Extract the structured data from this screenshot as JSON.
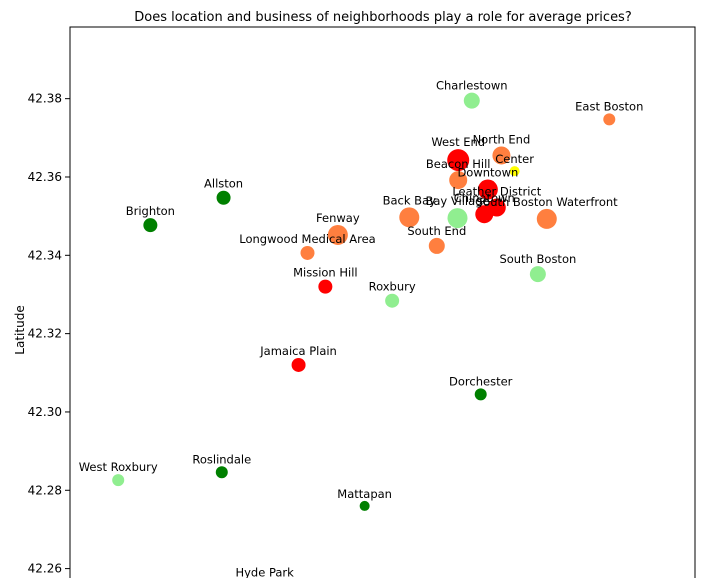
{
  "chart_data": {
    "type": "scatter",
    "title": "Does location and business of neighborhoods play a role for average prices?",
    "xlabel": "",
    "ylabel": "Latitude",
    "xlim": [
      -71.175,
      -71.0
    ],
    "ylim": [
      42.2553,
      42.3983
    ],
    "yticks": [
      "42.26",
      "42.28",
      "42.30",
      "42.32",
      "42.34",
      "42.36",
      "42.38"
    ],
    "grid": false,
    "colors": {
      "red": "#ff0000",
      "coral": "#ff7f3f",
      "lightgreen": "#90ee90",
      "darkgreen": "#008000",
      "yellow": "#ffff00"
    },
    "points": [
      {
        "label": "Charlestown",
        "x": -71.0625,
        "y": 42.3795,
        "size": 8,
        "color": "lightgreen"
      },
      {
        "label": "East Boston",
        "x": -71.024,
        "y": 42.3747,
        "size": 6,
        "color": "coral"
      },
      {
        "label": "North End",
        "x": -71.0542,
        "y": 42.3655,
        "size": 9,
        "color": "coral"
      },
      {
        "label": "West End",
        "x": -71.0663,
        "y": 42.3643,
        "size": 11,
        "color": "red"
      },
      {
        "label": "Center",
        "x": -71.0505,
        "y": 42.3615,
        "size": 5,
        "color": "yellow"
      },
      {
        "label": "Beacon Hill",
        "x": -71.0663,
        "y": 42.3592,
        "size": 9,
        "color": "coral"
      },
      {
        "label": "Downtown",
        "x": -71.058,
        "y": 42.3568,
        "size": 10,
        "color": "red"
      },
      {
        "label": "Allston",
        "x": -71.132,
        "y": 42.3547,
        "size": 7,
        "color": "darkgreen"
      },
      {
        "label": "Leather District",
        "x": -71.0555,
        "y": 42.3522,
        "size": 9,
        "color": "red"
      },
      {
        "label": "Bay Village",
        "x": -71.0665,
        "y": 42.3495,
        "size": 10,
        "color": "lightgreen"
      },
      {
        "label": "Chinatown",
        "x": -71.059,
        "y": 42.3505,
        "size": 9,
        "color": "red"
      },
      {
        "label": "South Boston Waterfront",
        "x": -71.0415,
        "y": 42.3493,
        "size": 10,
        "color": "coral"
      },
      {
        "label": "Back Bay",
        "x": -71.08,
        "y": 42.3497,
        "size": 10,
        "color": "coral"
      },
      {
        "label": "Brighton",
        "x": -71.1525,
        "y": 42.3477,
        "size": 7,
        "color": "darkgreen"
      },
      {
        "label": "Fenway",
        "x": -71.1,
        "y": 42.3452,
        "size": 10,
        "color": "coral"
      },
      {
        "label": "South End",
        "x": -71.0723,
        "y": 42.3424,
        "size": 8,
        "color": "coral"
      },
      {
        "label": "Longwood Medical Area",
        "x": -71.1085,
        "y": 42.3406,
        "size": 7,
        "color": "coral"
      },
      {
        "label": "South Boston",
        "x": -71.044,
        "y": 42.3352,
        "size": 8,
        "color": "lightgreen"
      },
      {
        "label": "Mission Hill",
        "x": -71.1035,
        "y": 42.332,
        "size": 7,
        "color": "red"
      },
      {
        "label": "Roxbury",
        "x": -71.0848,
        "y": 42.3284,
        "size": 7,
        "color": "lightgreen"
      },
      {
        "label": "Jamaica Plain",
        "x": -71.111,
        "y": 42.312,
        "size": 7,
        "color": "red"
      },
      {
        "label": "Dorchester",
        "x": -71.06,
        "y": 42.3045,
        "size": 6,
        "color": "darkgreen"
      },
      {
        "label": "Roslindale",
        "x": -71.1325,
        "y": 42.2846,
        "size": 6,
        "color": "darkgreen"
      },
      {
        "label": "West Roxbury",
        "x": -71.1615,
        "y": 42.2826,
        "size": 6,
        "color": "lightgreen"
      },
      {
        "label": "Mattapan",
        "x": -71.0925,
        "y": 42.276,
        "size": 5,
        "color": "darkgreen"
      },
      {
        "label": "Hyde Park",
        "x": -71.1205,
        "y": 42.256,
        "size": 5,
        "color": "darkgreen"
      }
    ]
  }
}
